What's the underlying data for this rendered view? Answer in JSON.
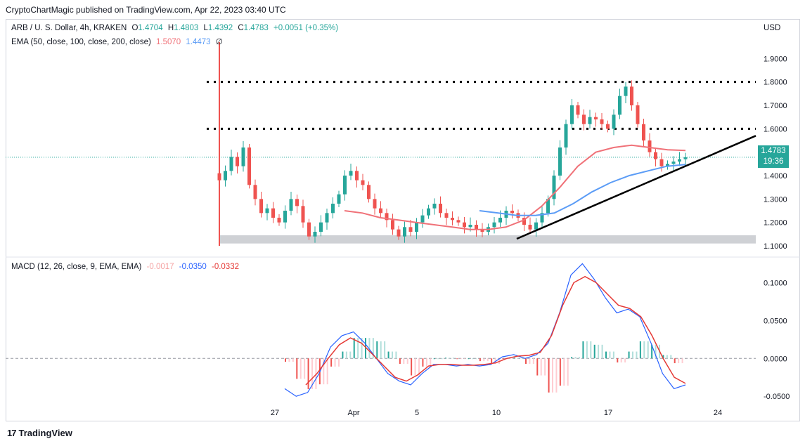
{
  "header": {
    "published": "CryptoChartMagic published on TradingView.com, Apr 22, 2023 03:40 UTC"
  },
  "legend_main": {
    "symbol": "ARB / U. S. Dollar, 4h, KRAKEN",
    "o_label": "O",
    "o": "1.4704",
    "h_label": "H",
    "h": "1.4803",
    "l_label": "L",
    "l": "1.4392",
    "c_label": "C",
    "c": "1.4783",
    "change": "+0.0051 (+0.35%)"
  },
  "legend_ema": {
    "label": "EMA (50, close, 100, close, 200, close)",
    "v1": "1.5070",
    "v2": "1.4473",
    "v3": "∅"
  },
  "legend_macd": {
    "label": "MACD (12, 26, close, 9, EMA, EMA)",
    "hist": "-0.0017",
    "macd": "-0.0350",
    "signal": "-0.0332"
  },
  "currency": "USD",
  "price_tag": {
    "price": "1.4783",
    "countdown": "19:36"
  },
  "brand": {
    "logo": "17",
    "name": "TradingView"
  },
  "colors": {
    "up": "#26a69a",
    "down": "#ef5350",
    "ema50": "#f07178",
    "ema100": "#5b9cf6",
    "macd": "#2962ff",
    "signal": "#e53935",
    "zone": "#c7c9ce"
  },
  "chart_data": [
    {
      "type": "candlestick",
      "title": "ARB / U. S. Dollar, 4h, KRAKEN",
      "x_ticks": [
        "27",
        "Apr",
        "5",
        "10",
        "17",
        "24"
      ],
      "y_ticks": [
        "1.1000",
        "1.2000",
        "1.3000",
        "1.4000",
        "1.5000",
        "1.6000",
        "1.7000",
        "1.8000",
        "1.9000"
      ],
      "ylim": [
        1.07,
        1.97
      ],
      "grid": false,
      "annotations": {
        "resistance_lines": [
          1.8,
          1.6
        ],
        "support_zone": [
          1.11,
          1.145
        ],
        "trendline": {
          "from": [
            "Apr 12",
            1.13
          ],
          "to": [
            "Apr 24",
            1.57
          ]
        }
      },
      "close_series": [
        1.38,
        1.42,
        1.48,
        1.44,
        1.52,
        1.36,
        1.3,
        1.24,
        1.26,
        1.22,
        1.2,
        1.25,
        1.3,
        1.27,
        1.2,
        1.14,
        1.16,
        1.2,
        1.24,
        1.28,
        1.32,
        1.4,
        1.42,
        1.38,
        1.36,
        1.3,
        1.26,
        1.24,
        1.21,
        1.17,
        1.14,
        1.18,
        1.16,
        1.2,
        1.23,
        1.26,
        1.28,
        1.24,
        1.22,
        1.21,
        1.2,
        1.18,
        1.19,
        1.17,
        1.16,
        1.18,
        1.2,
        1.22,
        1.25,
        1.24,
        1.22,
        1.19,
        1.17,
        1.2,
        1.24,
        1.3,
        1.4,
        1.52,
        1.62,
        1.7,
        1.66,
        1.62,
        1.65,
        1.64,
        1.62,
        1.6,
        1.66,
        1.74,
        1.78,
        1.7,
        1.62,
        1.55,
        1.5,
        1.47,
        1.44,
        1.45,
        1.46,
        1.47,
        1.4783
      ],
      "ema50": [
        1.25,
        1.24,
        1.22,
        1.21,
        1.2,
        1.19,
        1.18,
        1.17,
        1.17,
        1.18,
        1.21,
        1.27,
        1.35,
        1.44,
        1.5,
        1.52,
        1.53,
        1.52,
        1.51,
        1.507
      ],
      "ema100": [
        1.25,
        1.24,
        1.23,
        1.23,
        1.24,
        1.28,
        1.33,
        1.37,
        1.4,
        1.42,
        1.44,
        1.447
      ]
    },
    {
      "type": "macd",
      "title": "MACD (12, 26, close, 9, EMA, EMA)",
      "y_ticks": [
        "0.1000",
        "0.0500",
        "0.0000",
        "-0.0500"
      ],
      "ylim": [
        -0.06,
        0.13
      ],
      "macd": [
        -0.04,
        -0.05,
        -0.045,
        -0.02,
        0.015,
        0.03,
        0.035,
        0.02,
        0.0,
        -0.02,
        -0.03,
        -0.035,
        -0.02,
        -0.008,
        -0.008,
        -0.01,
        -0.008,
        -0.01,
        -0.008,
        0.002,
        0.005,
        0.0,
        0.005,
        0.02,
        0.06,
        0.11,
        0.125,
        0.105,
        0.08,
        0.06,
        0.065,
        0.055,
        0.02,
        -0.02,
        -0.04,
        -0.035
      ],
      "signal": [
        -0.035,
        -0.02,
        0.0,
        0.018,
        0.027,
        0.02,
        0.005,
        -0.01,
        -0.025,
        -0.03,
        -0.022,
        -0.01,
        -0.008,
        -0.008,
        -0.009,
        -0.009,
        -0.008,
        -0.006,
        0.0,
        0.003,
        0.004,
        0.008,
        0.03,
        0.07,
        0.1,
        0.108,
        0.1,
        0.085,
        0.07,
        0.066,
        0.055,
        0.03,
        0.0,
        -0.025,
        -0.033
      ],
      "histogram_current": -0.0017
    }
  ]
}
